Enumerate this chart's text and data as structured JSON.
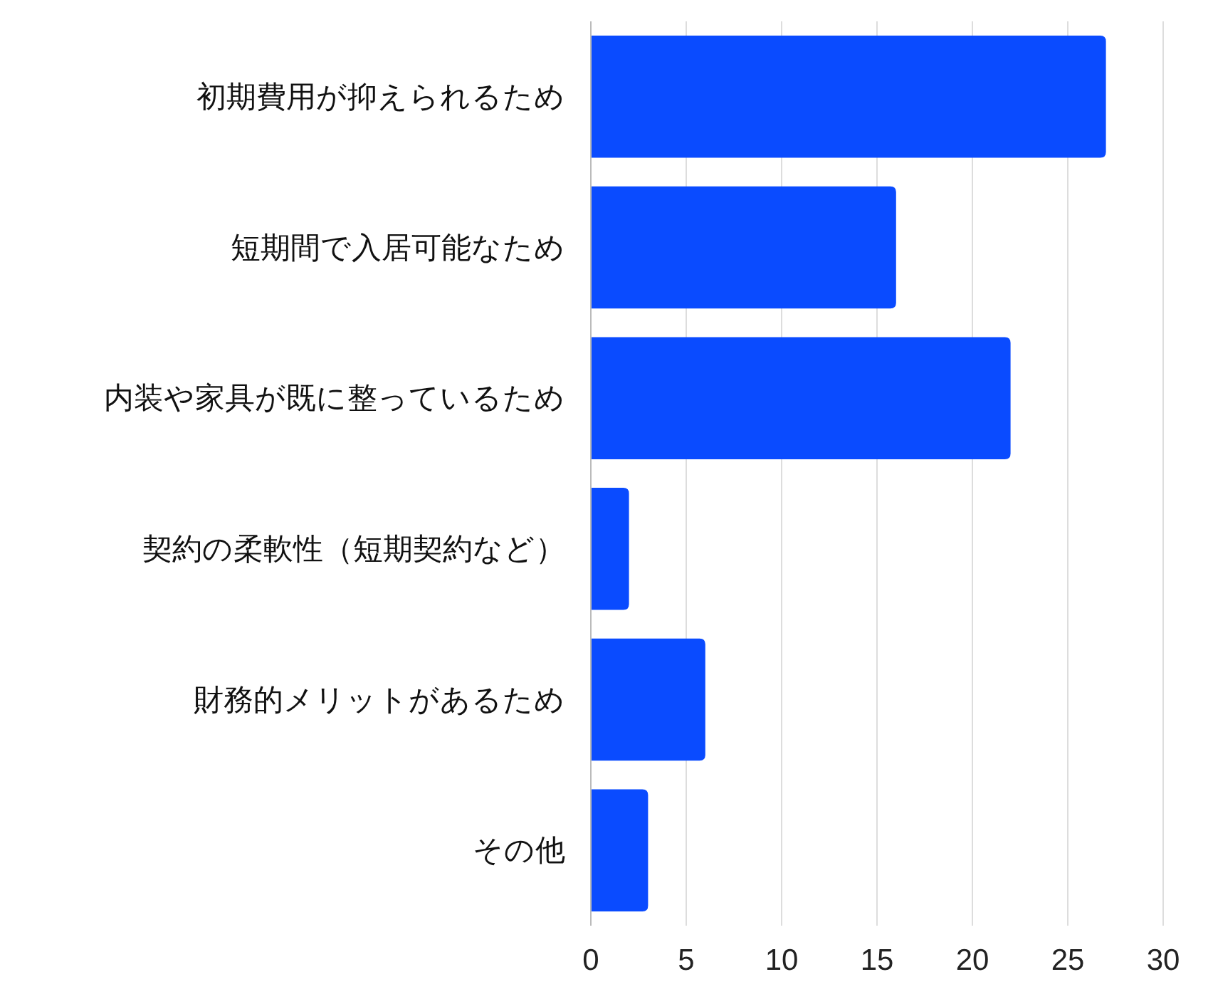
{
  "chart_data": {
    "type": "bar",
    "orientation": "horizontal",
    "categories": [
      "初期費用が抑えられるため",
      "短期間で入居可能なため",
      "内装や家具が既に整っているため",
      "契約の柔軟性（短期契約など）",
      "財務的メリットがあるため",
      "その他"
    ],
    "values": [
      27,
      16,
      22,
      2,
      6,
      3
    ],
    "color": "#0a4bff",
    "xlim": [
      0,
      30
    ],
    "xticks": [
      0,
      5,
      10,
      15,
      20,
      25,
      30
    ],
    "grid": "x"
  }
}
